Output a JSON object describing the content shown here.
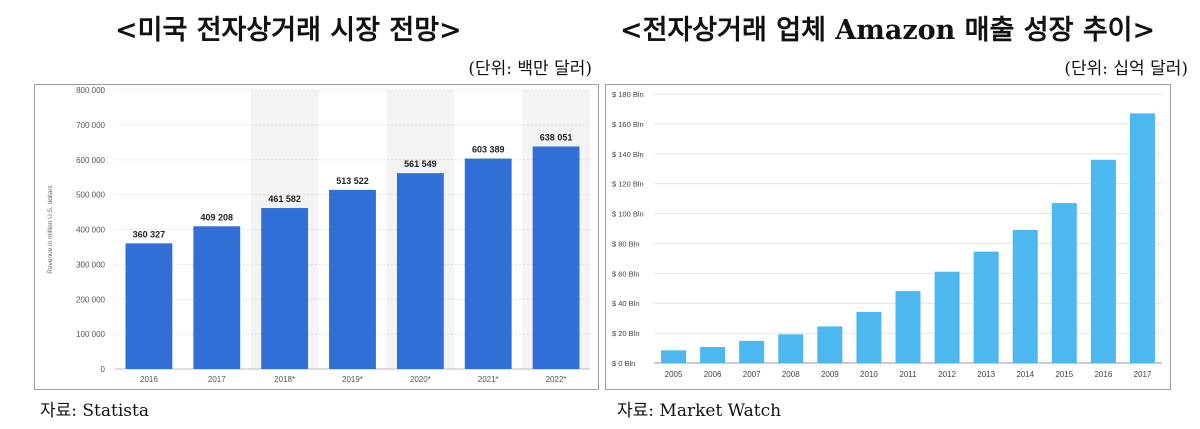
{
  "left": {
    "title": "<미국 전자상거래 시장 전망>",
    "unit": "(단위: 백만 달러)",
    "source": "자료: Statista",
    "chart_data": {
      "type": "bar",
      "ylabel": "Revenue in million U.S. dollars",
      "ylim": [
        0,
        800000
      ],
      "yticks": [
        0,
        100000,
        200000,
        300000,
        400000,
        500000,
        600000,
        700000,
        800000
      ],
      "ytick_labels": [
        "0",
        "100 000",
        "200 000",
        "300 000",
        "400 000",
        "500 000",
        "600 000",
        "700 000",
        "800 000"
      ],
      "categories": [
        "2016",
        "2017",
        "2018*",
        "2019*",
        "2020*",
        "2021*",
        "2022*"
      ],
      "values": [
        360327,
        409208,
        461582,
        513522,
        561549,
        603389,
        638051
      ],
      "value_labels": [
        "360 327",
        "409 208",
        "461 582",
        "513 522",
        "561 549",
        "603 389",
        "638 051"
      ],
      "bar_color": "#2f6fd6"
    }
  },
  "right": {
    "title": "<전자상거래 업체 Amazon 매출 성장 추이>",
    "unit": "(단위: 십억 달러)",
    "source": "자료: Market Watch",
    "chart_data": {
      "type": "bar",
      "ylim": [
        0,
        180
      ],
      "yticks": [
        0,
        20,
        40,
        60,
        80,
        100,
        120,
        140,
        160,
        180
      ],
      "ytick_labels": [
        "$ 0 Bln",
        "$ 20 Bln",
        "$ 40 Bln",
        "$ 60 Bln",
        "$ 80 Bln",
        "$ 100 Bln",
        "$ 120 Bln",
        "$ 140 Bln",
        "$ 160 Bln",
        "$ 180 Bln"
      ],
      "categories": [
        "2005",
        "2006",
        "2007",
        "2008",
        "2009",
        "2010",
        "2011",
        "2012",
        "2013",
        "2014",
        "2015",
        "2016",
        "2017"
      ],
      "values": [
        8.5,
        10.7,
        14.8,
        19.2,
        24.5,
        34.2,
        48.1,
        61.1,
        74.5,
        89.0,
        107.0,
        136.0,
        167.0
      ],
      "bar_color": "#4db8f0"
    }
  }
}
